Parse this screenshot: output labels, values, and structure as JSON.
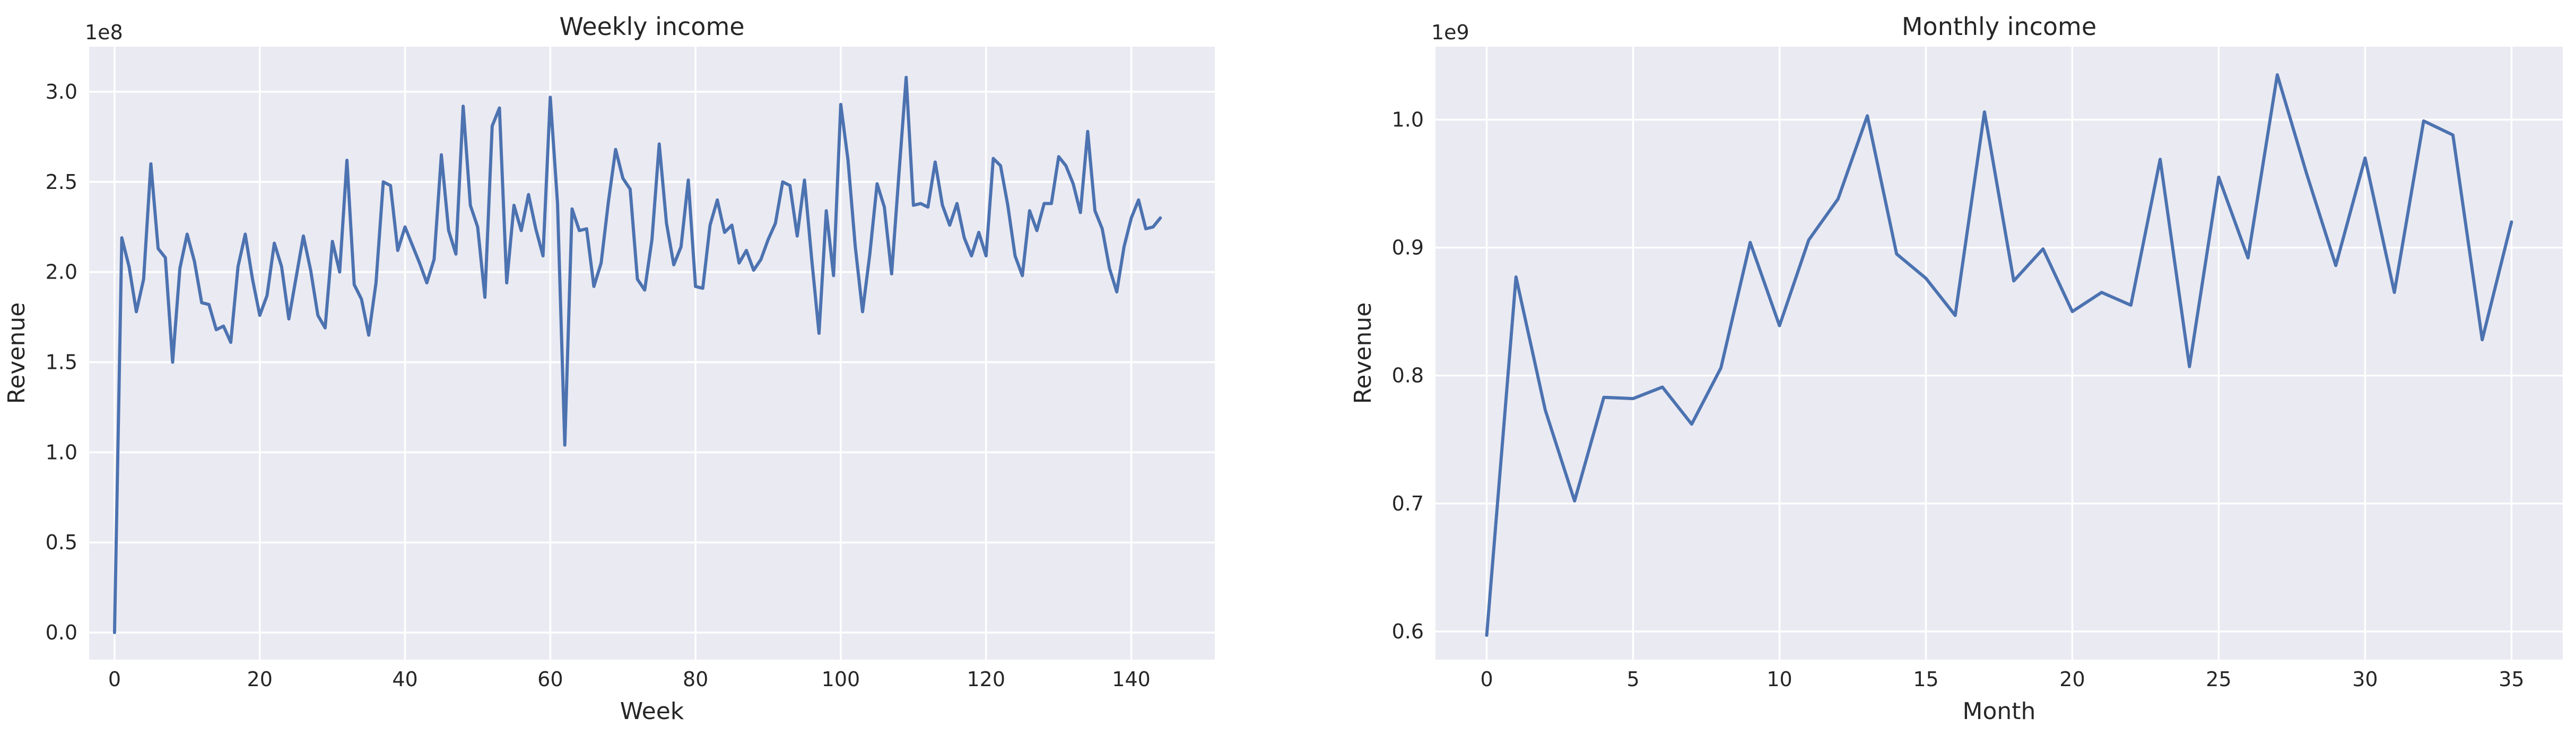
{
  "chart_data": [
    {
      "id": "weekly",
      "type": "line",
      "title": "Weekly income",
      "xlabel": "Week",
      "ylabel": "Revenue",
      "offset_label": "1e8",
      "xlim": [
        -3.5,
        151.5
      ],
      "ylim": [
        -0.15,
        3.25
      ],
      "xticks": [
        0,
        20,
        40,
        60,
        80,
        100,
        120,
        140
      ],
      "yticks": [
        0.0,
        0.5,
        1.0,
        1.5,
        2.0,
        2.5,
        3.0
      ],
      "ytick_labels": [
        "0.0",
        "0.5",
        "1.0",
        "1.5",
        "2.0",
        "2.5",
        "3.0"
      ],
      "grid": true,
      "series": [
        {
          "color": "#4c72b0",
          "x_start": 0,
          "values": [
            0.0,
            2.19,
            2.03,
            1.78,
            1.96,
            2.6,
            2.13,
            2.08,
            1.5,
            2.02,
            2.21,
            2.06,
            1.83,
            1.82,
            1.68,
            1.7,
            1.61,
            2.03,
            2.21,
            1.96,
            1.76,
            1.87,
            2.16,
            2.03,
            1.74,
            1.97,
            2.2,
            2.01,
            1.76,
            1.69,
            2.17,
            2.0,
            2.62,
            1.93,
            1.85,
            1.65,
            1.94,
            2.5,
            2.48,
            2.12,
            2.25,
            2.15,
            2.05,
            1.94,
            2.07,
            2.65,
            2.23,
            2.1,
            2.92,
            2.37,
            2.25,
            1.86,
            2.81,
            2.91,
            1.94,
            2.37,
            2.23,
            2.43,
            2.24,
            2.09,
            2.97,
            2.38,
            1.04,
            2.35,
            2.23,
            2.24,
            1.92,
            2.05,
            2.39,
            2.68,
            2.52,
            2.46,
            1.96,
            1.9,
            2.18,
            2.71,
            2.27,
            2.04,
            2.14,
            2.51,
            1.92,
            1.91,
            2.26,
            2.4,
            2.22,
            2.26,
            2.05,
            2.12,
            2.01,
            2.07,
            2.18,
            2.27,
            2.5,
            2.48,
            2.2,
            2.51,
            2.07,
            1.66,
            2.34,
            1.98,
            2.93,
            2.62,
            2.14,
            1.78,
            2.1,
            2.49,
            2.36,
            1.99,
            2.54,
            3.08,
            2.37,
            2.38,
            2.36,
            2.61,
            2.37,
            2.26,
            2.38,
            2.19,
            2.09,
            2.22,
            2.09,
            2.63,
            2.59,
            2.37,
            2.09,
            1.98,
            2.34,
            2.23,
            2.38,
            2.38,
            2.64,
            2.59,
            2.49,
            2.33,
            2.78,
            2.34,
            2.24,
            2.02,
            1.89,
            2.14,
            2.3,
            2.4,
            2.24,
            2.25,
            2.3
          ]
        }
      ]
    },
    {
      "id": "monthly",
      "type": "line",
      "title": "Monthly income",
      "xlabel": "Month",
      "ylabel": "Revenue",
      "offset_label": "1e9",
      "xlim": [
        -1.75,
        36.75
      ],
      "ylim": [
        0.578,
        1.057
      ],
      "xticks": [
        0,
        5,
        10,
        15,
        20,
        25,
        30,
        35
      ],
      "yticks": [
        0.6,
        0.7,
        0.8,
        0.9,
        1.0
      ],
      "ytick_labels": [
        "0.6",
        "0.7",
        "0.8",
        "0.9",
        "1.0"
      ],
      "grid": true,
      "series": [
        {
          "color": "#4c72b0",
          "x_start": 0,
          "values": [
            0.597,
            0.877,
            0.773,
            0.702,
            0.783,
            0.782,
            0.791,
            0.762,
            0.806,
            0.904,
            0.839,
            0.906,
            0.938,
            1.003,
            0.895,
            0.876,
            0.847,
            1.006,
            0.874,
            0.899,
            0.85,
            0.865,
            0.855,
            0.969,
            0.807,
            0.955,
            0.892,
            1.035,
            0.958,
            0.886,
            0.97,
            0.865,
            0.999,
            0.988,
            0.828,
            0.92
          ]
        }
      ]
    }
  ]
}
